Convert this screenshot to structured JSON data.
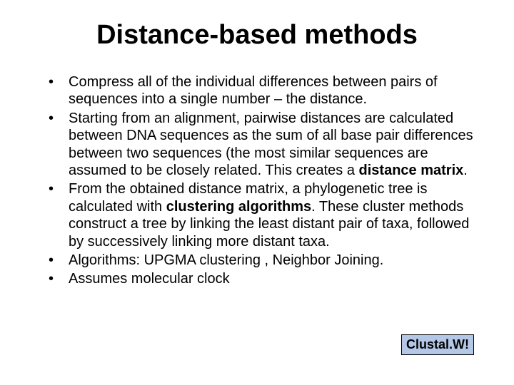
{
  "title": {
    "bold_part": "Distance",
    "rest": "-based methods"
  },
  "bullets": [
    {
      "text": "Compress all of the individual differences between pairs of sequences into a single number – the distance."
    },
    {
      "pre": "Starting from an alignment, pairwise distances are calculated between DNA sequences as the sum of all base pair differences between two sequences (the most similar sequences are assumed to be closely related. This creates a ",
      "bold": "distance matrix",
      "post": "."
    },
    {
      "pre": "From the obtained distance matrix, a phylogenetic tree is calculated with ",
      "bold": "clustering algorithms",
      "post": ". These cluster methods construct a tree by linking the least distant pair of taxa, followed by successively linking more distant taxa."
    },
    {
      "text": "Algorithms: UPGMA clustering , Neighbor Joining."
    },
    {
      "text": "Assumes molecular clock"
    }
  ],
  "badge": "Clustal.W!",
  "colors": {
    "badge_bg": "#b4c7e7",
    "badge_border": "#000000",
    "background": "#ffffff",
    "text": "#000000"
  }
}
